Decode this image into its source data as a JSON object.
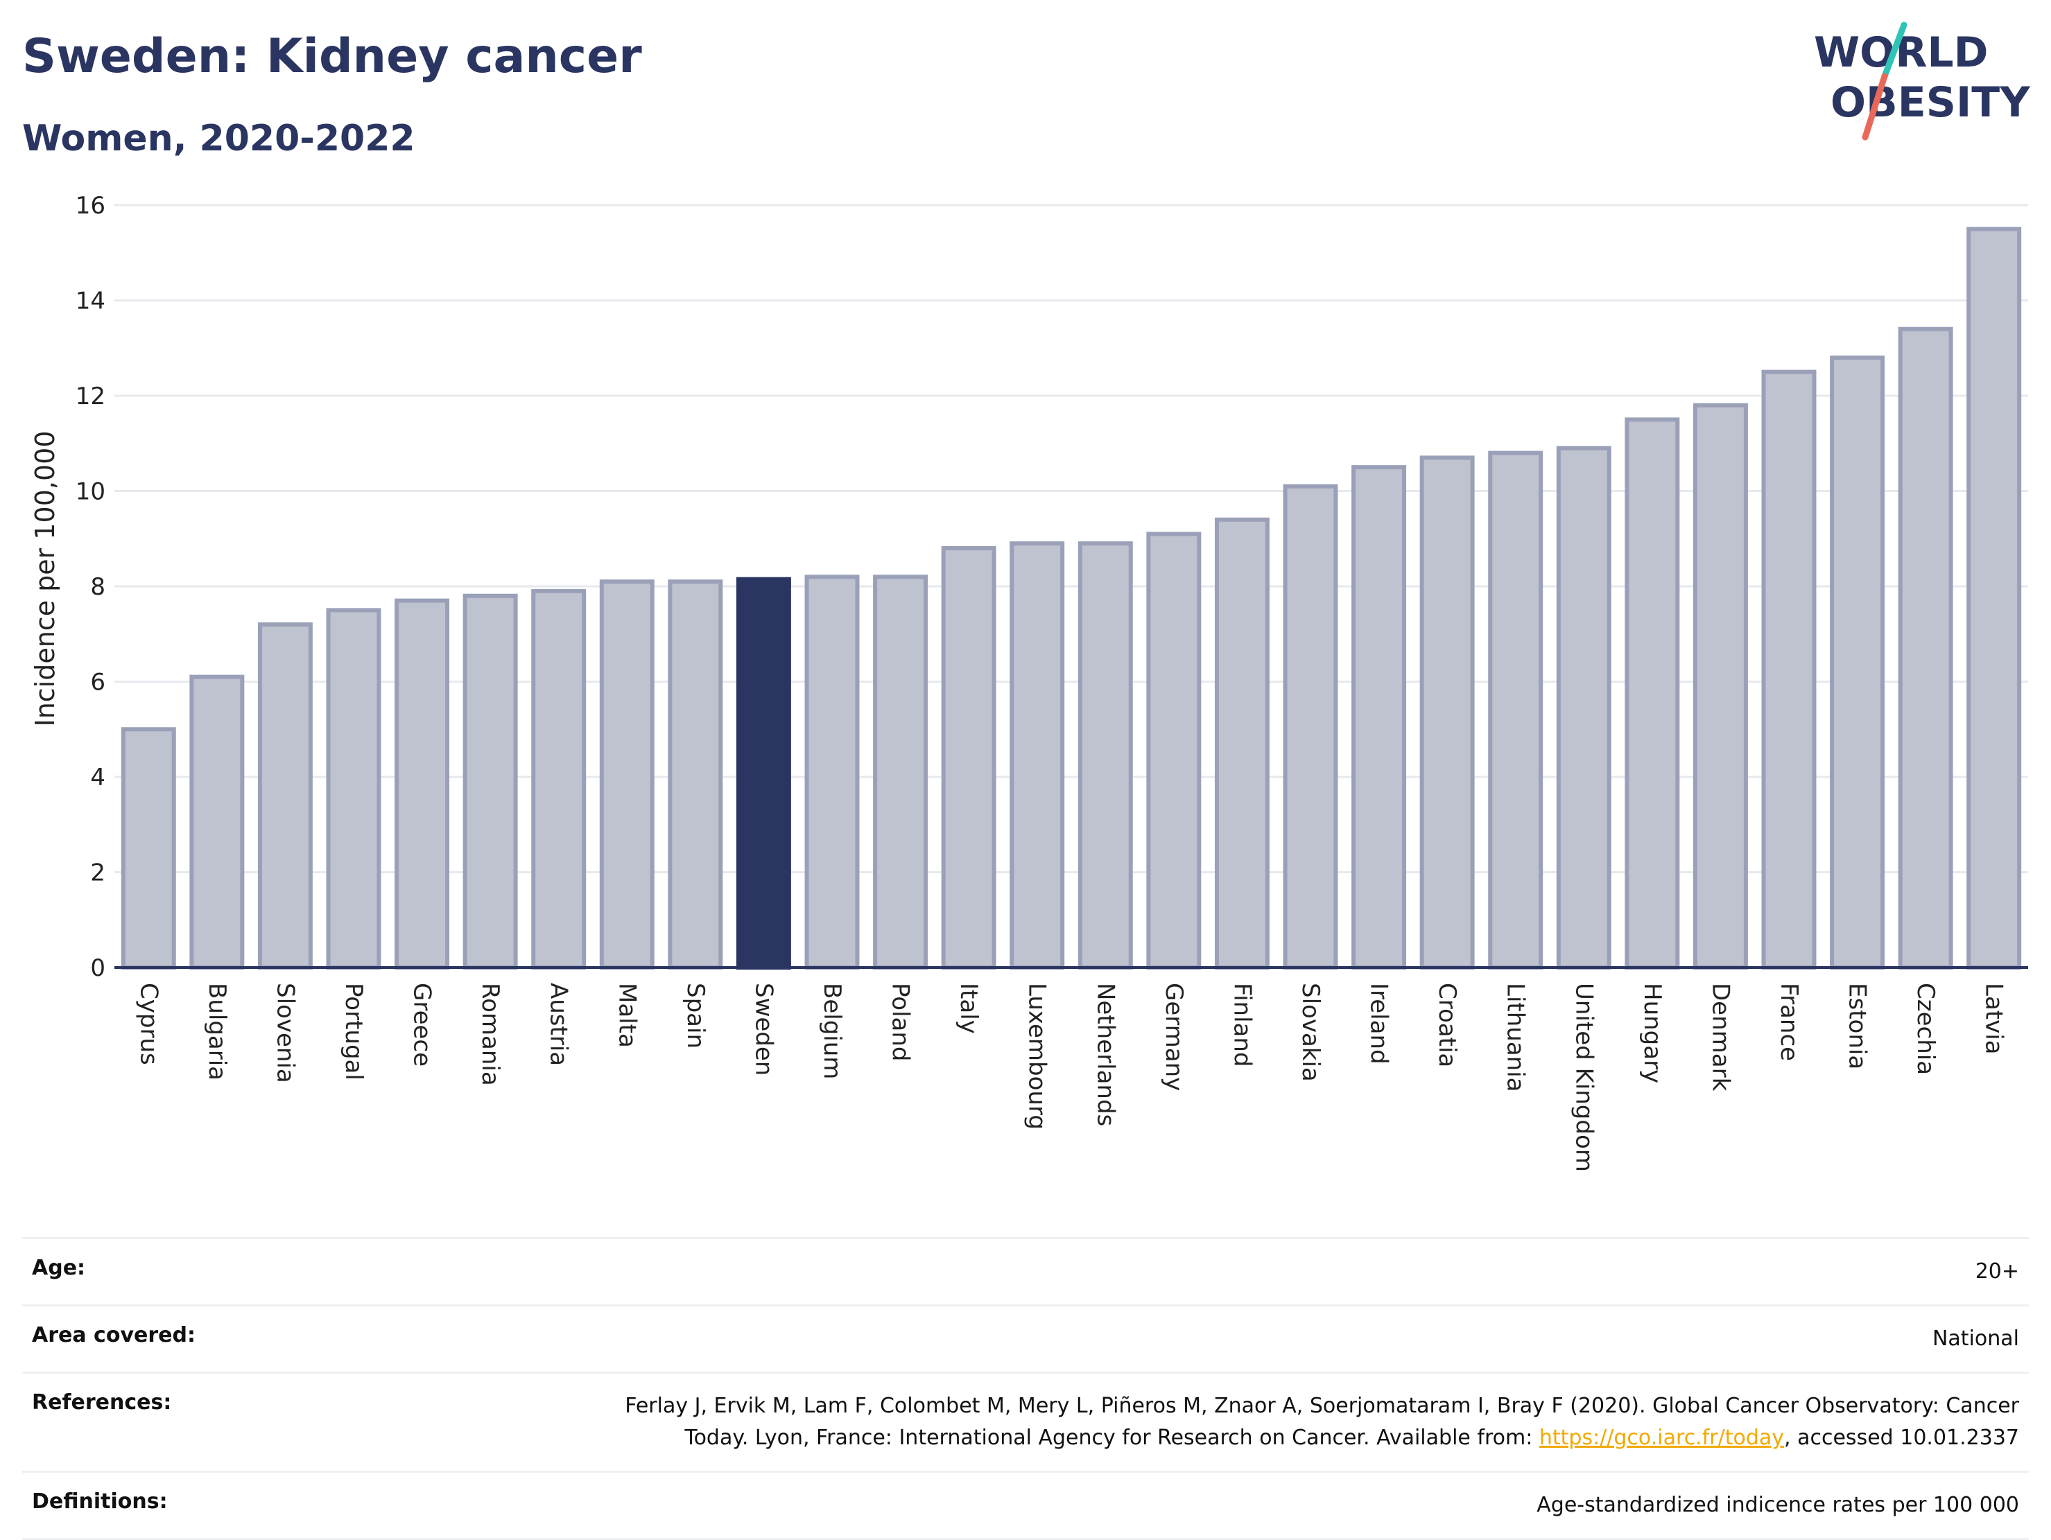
{
  "header": {
    "title": "Sweden: Kidney cancer",
    "subtitle": "Women, 2020-2022"
  },
  "logo": {
    "line1": "WORLD",
    "line2": "OBESITY",
    "accent_colors": [
      "#2ec4b6",
      "#e8685a"
    ]
  },
  "colors": {
    "bar": "#bfc2cf",
    "bar_border": "#9aa0b8",
    "highlight": "#2a3561",
    "grid": "#e8e9ee",
    "axis": "#2a3561"
  },
  "chart_data": {
    "type": "bar",
    "ylabel": "Incidence per 100,000",
    "ylim": [
      0,
      16
    ],
    "yticks": [
      0,
      2,
      4,
      6,
      8,
      10,
      12,
      14,
      16
    ],
    "grid": true,
    "highlight": "Sweden",
    "categories": [
      "Cyprus",
      "Bulgaria",
      "Slovenia",
      "Portugal",
      "Greece",
      "Romania",
      "Austria",
      "Malta",
      "Spain",
      "Sweden",
      "Belgium",
      "Poland",
      "Italy",
      "Luxembourg",
      "Netherlands",
      "Germany",
      "Finland",
      "Slovakia",
      "Ireland",
      "Croatia",
      "Lithuania",
      "United Kingdom",
      "Hungary",
      "Denmark",
      "France",
      "Estonia",
      "Czechia",
      "Latvia"
    ],
    "values": [
      5.0,
      6.1,
      7.2,
      7.5,
      7.7,
      7.8,
      7.9,
      8.1,
      8.1,
      8.15,
      8.2,
      8.2,
      8.8,
      8.9,
      8.9,
      9.1,
      9.4,
      10.1,
      10.5,
      10.7,
      10.8,
      10.9,
      11.5,
      11.8,
      12.5,
      12.8,
      13.4,
      15.5
    ]
  },
  "meta": {
    "age_label": "Age:",
    "age_value": "20+",
    "area_label": "Area covered:",
    "area_value": "National",
    "references_label": "References:",
    "references_line1": "Ferlay J, Ervik M, Lam F, Colombet M, Mery L, Piñeros M, Znaor A, Soerjomataram I, Bray F (2020). Global Cancer Observatory: Cancer",
    "references_line2_pre": "Today. Lyon, France: International Agency for Research on Cancer. Available from: ",
    "references_link": "https://gco.iarc.fr/today",
    "references_line2_post": ", accessed 10.01.2337",
    "definitions_label": "Definitions:",
    "definitions_value": "Age-standardized indicence rates per 100 000"
  }
}
